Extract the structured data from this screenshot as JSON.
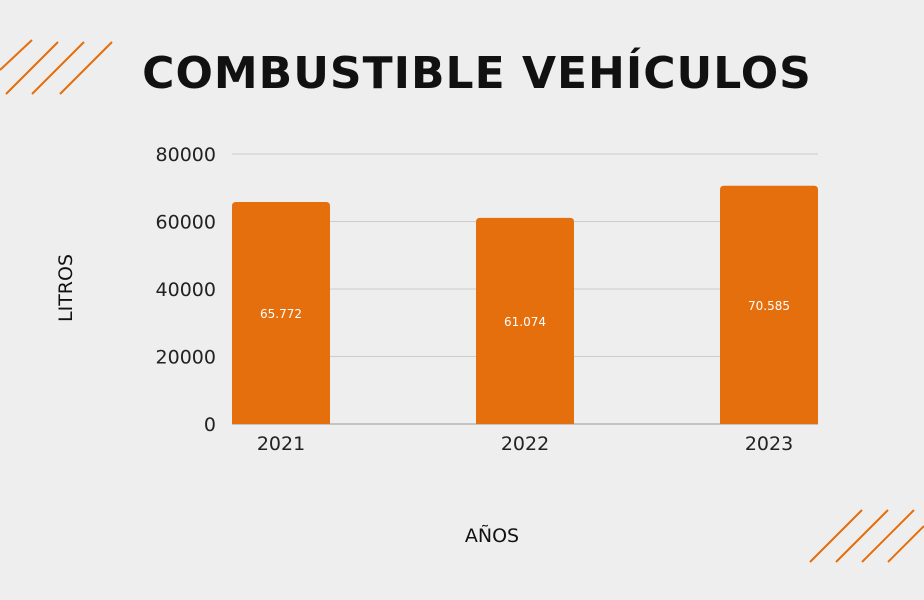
{
  "chart_data": {
    "type": "bar",
    "title": "COMBUSTIBLE VEHÍCULOS",
    "xlabel": "AÑOS",
    "ylabel": "LITROS",
    "categories": [
      "2021",
      "2022",
      "2023"
    ],
    "values": [
      65772,
      61074,
      70585
    ],
    "data_labels": [
      "65.772",
      "61.074",
      "70.585"
    ],
    "ylim": [
      0,
      80000
    ],
    "yticks": [
      0,
      20000,
      40000,
      60000,
      80000
    ],
    "grid": true,
    "legend": "none",
    "bar_color": "#e56e0d"
  },
  "colors": {
    "background": "#eeeeee",
    "accent": "#e56e0d",
    "grid": "#cccccc",
    "text": "#111111"
  }
}
